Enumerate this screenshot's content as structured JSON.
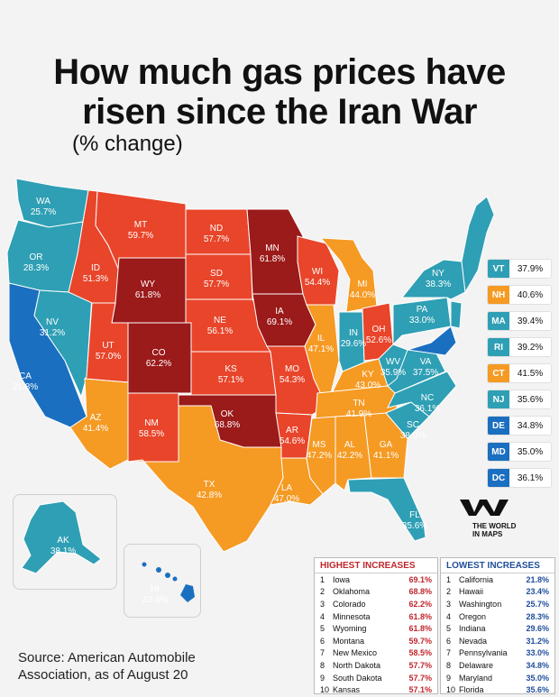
{
  "title_line1": "How much gas prices have",
  "title_line2": "risen since the Iran War",
  "subtitle": "(% change)",
  "colors": {
    "teal": "#2e9fb4",
    "blue": "#1b6fc0",
    "orange": "#f59a23",
    "red_orange": "#e8452a",
    "dark_red": "#9b1a1a"
  },
  "states": [
    {
      "abbr": "WA",
      "value": "25.7%"
    },
    {
      "abbr": "OR",
      "value": "28.3%"
    },
    {
      "abbr": "CA",
      "value": "21.8%"
    },
    {
      "abbr": "NV",
      "value": "31.2%"
    },
    {
      "abbr": "ID",
      "value": "51.3%"
    },
    {
      "abbr": "MT",
      "value": "59.7%"
    },
    {
      "abbr": "WY",
      "value": "61.8%"
    },
    {
      "abbr": "UT",
      "value": "57.0%"
    },
    {
      "abbr": "AZ",
      "value": "41.4%"
    },
    {
      "abbr": "CO",
      "value": "62.2%"
    },
    {
      "abbr": "NM",
      "value": "58.5%"
    },
    {
      "abbr": "ND",
      "value": "57.7%"
    },
    {
      "abbr": "SD",
      "value": "57.7%"
    },
    {
      "abbr": "NE",
      "value": "56.1%"
    },
    {
      "abbr": "KS",
      "value": "57.1%"
    },
    {
      "abbr": "OK",
      "value": "68.8%"
    },
    {
      "abbr": "TX",
      "value": "42.8%"
    },
    {
      "abbr": "MN",
      "value": "61.8%"
    },
    {
      "abbr": "IA",
      "value": "69.1%"
    },
    {
      "abbr": "MO",
      "value": "54.3%"
    },
    {
      "abbr": "AR",
      "value": "54.6%"
    },
    {
      "abbr": "LA",
      "value": "47.0%"
    },
    {
      "abbr": "WI",
      "value": "54.4%"
    },
    {
      "abbr": "IL",
      "value": "47.1%"
    },
    {
      "abbr": "MI",
      "value": "44.0%"
    },
    {
      "abbr": "IN",
      "value": "29.6%"
    },
    {
      "abbr": "OH",
      "value": "52.6%"
    },
    {
      "abbr": "KY",
      "value": "43.0%"
    },
    {
      "abbr": "TN",
      "value": "41.9%"
    },
    {
      "abbr": "MS",
      "value": "47.2%"
    },
    {
      "abbr": "AL",
      "value": "42.2%"
    },
    {
      "abbr": "GA",
      "value": "41.1%"
    },
    {
      "abbr": "FL",
      "value": "35.6%"
    },
    {
      "abbr": "SC",
      "value": "38.0%"
    },
    {
      "abbr": "NC",
      "value": "36.1%"
    },
    {
      "abbr": "VA",
      "value": "37.5%"
    },
    {
      "abbr": "WV",
      "value": "35.9%"
    },
    {
      "abbr": "PA",
      "value": "33.0%"
    },
    {
      "abbr": "NY",
      "value": "38.3%"
    },
    {
      "abbr": "AK",
      "value": "38.1%"
    },
    {
      "abbr": "HI",
      "value": "23.4%"
    }
  ],
  "legend": [
    {
      "abbr": "VT",
      "value": "37.9%",
      "color": "#2e9fb4"
    },
    {
      "abbr": "NH",
      "value": "40.6%",
      "color": "#f59a23"
    },
    {
      "abbr": "MA",
      "value": "39.4%",
      "color": "#2e9fb4"
    },
    {
      "abbr": "RI",
      "value": "39.2%",
      "color": "#2e9fb4"
    },
    {
      "abbr": "CT",
      "value": "41.5%",
      "color": "#f59a23"
    },
    {
      "abbr": "NJ",
      "value": "35.6%",
      "color": "#2e9fb4"
    },
    {
      "abbr": "DE",
      "value": "34.8%",
      "color": "#1b6fc0"
    },
    {
      "abbr": "MD",
      "value": "35.0%",
      "color": "#1b6fc0"
    },
    {
      "abbr": "DC",
      "value": "36.1%",
      "color": "#1b6fc0"
    }
  ],
  "highest": {
    "title": "HIGHEST INCREASES",
    "rows": [
      {
        "rank": "1",
        "name": "Iowa",
        "value": "69.1%"
      },
      {
        "rank": "2",
        "name": "Oklahoma",
        "value": "68.8%"
      },
      {
        "rank": "3",
        "name": "Colorado",
        "value": "62.2%"
      },
      {
        "rank": "4",
        "name": "Minnesota",
        "value": "61.8%"
      },
      {
        "rank": "5",
        "name": "Wyoming",
        "value": "61.8%"
      },
      {
        "rank": "6",
        "name": "Montana",
        "value": "59.7%"
      },
      {
        "rank": "7",
        "name": "New Mexico",
        "value": "58.5%"
      },
      {
        "rank": "8",
        "name": "North Dakota",
        "value": "57.7%"
      },
      {
        "rank": "9",
        "name": "South Dakota",
        "value": "57.7%"
      },
      {
        "rank": "10",
        "name": "Kansas",
        "value": "57.1%"
      }
    ]
  },
  "lowest": {
    "title": "LOWEST INCREASES",
    "rows": [
      {
        "rank": "1",
        "name": "California",
        "value": "21.8%"
      },
      {
        "rank": "2",
        "name": "Hawaii",
        "value": "23.4%"
      },
      {
        "rank": "3",
        "name": "Washington",
        "value": "25.7%"
      },
      {
        "rank": "4",
        "name": "Oregon",
        "value": "28.3%"
      },
      {
        "rank": "5",
        "name": "Indiana",
        "value": "29.6%"
      },
      {
        "rank": "6",
        "name": "Nevada",
        "value": "31.2%"
      },
      {
        "rank": "7",
        "name": "Pennsylvania",
        "value": "33.0%"
      },
      {
        "rank": "8",
        "name": "Delaware",
        "value": "34.8%"
      },
      {
        "rank": "9",
        "name": "Maryland",
        "value": "35.0%"
      },
      {
        "rank": "10",
        "name": "Florida",
        "value": "35.6%"
      }
    ]
  },
  "source_line1": "Source: American Automobile",
  "source_line2": "Association, as of August 20",
  "logo_text1": "THE WORLD",
  "logo_text2": "IN MAPS"
}
